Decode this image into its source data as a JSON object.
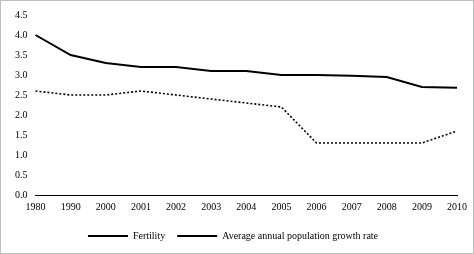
{
  "chart_data": {
    "type": "line",
    "categories": [
      "1980",
      "1990",
      "2000",
      "2001",
      "2002",
      "2003",
      "2004",
      "2005",
      "2006",
      "2007",
      "2008",
      "2009",
      "2010"
    ],
    "series": [
      {
        "name": "Fertility",
        "color": "#000000",
        "line_style": "solid",
        "marker": "none",
        "values": [
          4.0,
          3.5,
          3.3,
          3.2,
          3.2,
          3.1,
          3.1,
          3.0,
          3.0,
          2.98,
          2.95,
          2.7,
          2.68
        ]
      },
      {
        "name": "Average annual population growth rate",
        "color": "#000000",
        "line_style": "dotted",
        "marker": "none",
        "values": [
          2.6,
          2.5,
          2.5,
          2.6,
          2.5,
          2.4,
          2.3,
          2.2,
          1.3,
          1.3,
          1.3,
          1.3,
          1.6
        ]
      }
    ],
    "ylim": [
      0,
      4.5
    ],
    "yticks": [
      {
        "value": 0,
        "label": "0.0"
      },
      0.5,
      {
        "value": 1,
        "label": "1.0"
      },
      1.5,
      {
        "value": 2,
        "label": "2.0"
      },
      2.5,
      {
        "value": 3,
        "label": "3.0"
      },
      3.5,
      {
        "value": 4,
        "label": "4.0"
      },
      4.5
    ],
    "grid": false,
    "legend": "bottom"
  }
}
